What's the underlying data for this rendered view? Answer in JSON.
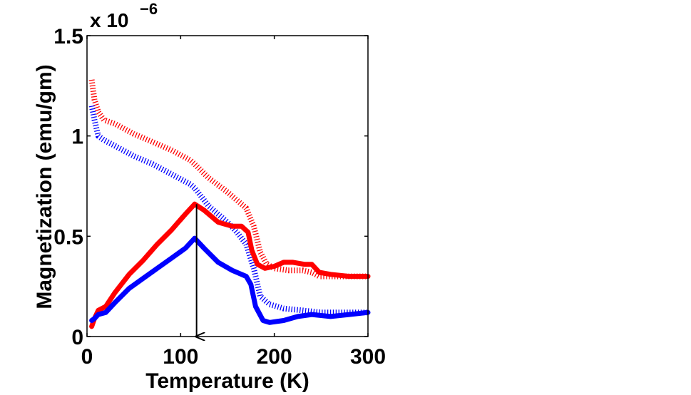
{
  "chart_data": {
    "type": "line",
    "title": "",
    "xlabel": "Temperature (K)",
    "ylabel": "Magnetization (emu/gm)",
    "y_multiplier_label": "x 10",
    "y_multiplier_exponent": "−6",
    "xlim": [
      0,
      300
    ],
    "ylim": [
      0,
      1.5
    ],
    "xticks": [
      0,
      100,
      200,
      300
    ],
    "xtick_labels": [
      "0",
      "100",
      "200",
      "300"
    ],
    "yticks": [
      0,
      0.5,
      1,
      1.5
    ],
    "ytick_labels": [
      "0",
      "0.5",
      "1",
      "1.5"
    ],
    "grid": false,
    "legend": "none",
    "series": [
      {
        "name": "red-dotted",
        "color": "#ff0000",
        "style": "dotted",
        "x": [
          5,
          8,
          12,
          18,
          30,
          50,
          70,
          90,
          110,
          115,
          130,
          150,
          160,
          170,
          178,
          185,
          192,
          200,
          215,
          230,
          240,
          248,
          260,
          280,
          300
        ],
        "y": [
          1.28,
          1.18,
          1.12,
          1.08,
          1.06,
          1.01,
          0.97,
          0.93,
          0.88,
          0.86,
          0.79,
          0.72,
          0.68,
          0.64,
          0.55,
          0.42,
          0.36,
          0.34,
          0.33,
          0.33,
          0.32,
          0.3,
          0.3,
          0.3,
          0.3
        ]
      },
      {
        "name": "blue-dotted",
        "color": "#0000ff",
        "style": "dotted",
        "x": [
          5,
          8,
          12,
          18,
          30,
          50,
          70,
          90,
          110,
          115,
          130,
          150,
          160,
          170,
          178,
          185,
          195,
          210,
          230,
          250,
          270,
          300
        ],
        "y": [
          1.15,
          1.08,
          1.0,
          0.98,
          0.95,
          0.9,
          0.86,
          0.81,
          0.76,
          0.74,
          0.65,
          0.57,
          0.52,
          0.46,
          0.34,
          0.2,
          0.16,
          0.14,
          0.13,
          0.12,
          0.12,
          0.12
        ]
      },
      {
        "name": "red-solid",
        "color": "#ff0000",
        "style": "solid",
        "x": [
          5,
          8,
          12,
          20,
          30,
          45,
          60,
          75,
          90,
          105,
          115,
          125,
          140,
          155,
          165,
          172,
          176,
          182,
          190,
          200,
          210,
          220,
          232,
          240,
          248,
          260,
          280,
          300
        ],
        "y": [
          0.05,
          0.09,
          0.13,
          0.15,
          0.22,
          0.31,
          0.38,
          0.46,
          0.53,
          0.61,
          0.66,
          0.63,
          0.57,
          0.55,
          0.55,
          0.52,
          0.43,
          0.36,
          0.34,
          0.35,
          0.37,
          0.37,
          0.36,
          0.36,
          0.32,
          0.31,
          0.3,
          0.3
        ]
      },
      {
        "name": "blue-solid",
        "color": "#0000ff",
        "style": "solid",
        "x": [
          5,
          8,
          12,
          20,
          30,
          45,
          60,
          75,
          90,
          105,
          115,
          125,
          140,
          155,
          165,
          170,
          175,
          180,
          188,
          195,
          210,
          225,
          240,
          260,
          280,
          300
        ],
        "y": [
          0.08,
          0.09,
          0.11,
          0.12,
          0.17,
          0.24,
          0.29,
          0.34,
          0.39,
          0.44,
          0.49,
          0.44,
          0.37,
          0.33,
          0.31,
          0.3,
          0.26,
          0.15,
          0.08,
          0.07,
          0.08,
          0.1,
          0.11,
          0.1,
          0.11,
          0.12
        ]
      }
    ],
    "annotations": [
      {
        "type": "arrow",
        "x": 117,
        "y_start": 0.66,
        "y_end": 0.0,
        "color": "#000000"
      }
    ]
  }
}
